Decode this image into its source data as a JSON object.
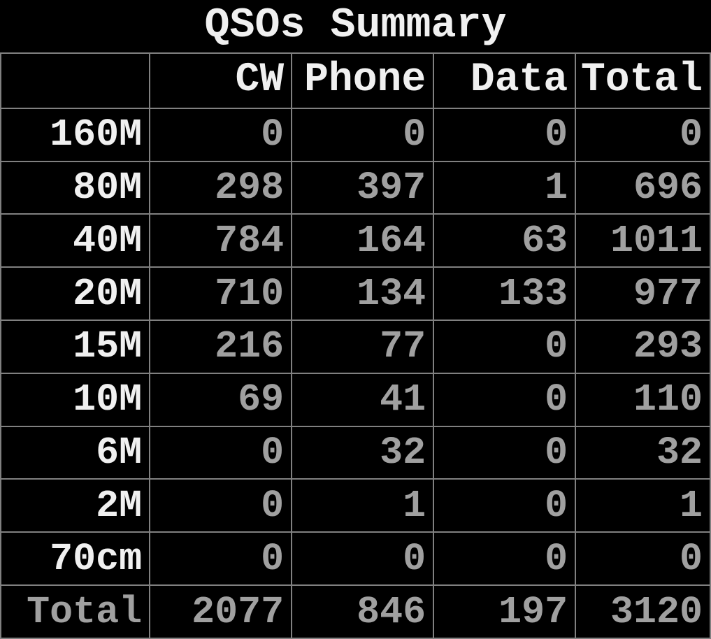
{
  "table": {
    "type": "table",
    "title": "QSOs Summary",
    "background_color": "#000000",
    "border_color": "#808080",
    "header_text_color": "#f0f0f0",
    "label_text_color": "#f0f0f0",
    "data_text_color": "#a0a0a0",
    "total_text_color": "#a0a0a0",
    "title_fontsize": 60,
    "header_fontsize": 58,
    "cell_fontsize": 55,
    "font_family": "monospace",
    "columns": [
      "",
      "CW",
      "Phone",
      "Data",
      "Total"
    ],
    "column_widths_pct": [
      21,
      20,
      20,
      20,
      19
    ],
    "column_align": [
      "right",
      "right",
      "right",
      "right",
      "right"
    ],
    "rows": [
      {
        "band": "160M",
        "cw": 0,
        "phone": 0,
        "data": 0,
        "total": 0
      },
      {
        "band": "80M",
        "cw": 298,
        "phone": 397,
        "data": 1,
        "total": 696
      },
      {
        "band": "40M",
        "cw": 784,
        "phone": 164,
        "data": 63,
        "total": 1011
      },
      {
        "band": "20M",
        "cw": 710,
        "phone": 134,
        "data": 133,
        "total": 977
      },
      {
        "band": "15M",
        "cw": 216,
        "phone": 77,
        "data": 0,
        "total": 293
      },
      {
        "band": "10M",
        "cw": 69,
        "phone": 41,
        "data": 0,
        "total": 110
      },
      {
        "band": "6M",
        "cw": 0,
        "phone": 32,
        "data": 0,
        "total": 32
      },
      {
        "band": "2M",
        "cw": 0,
        "phone": 1,
        "data": 0,
        "total": 1
      },
      {
        "band": "70cm",
        "cw": 0,
        "phone": 0,
        "data": 0,
        "total": 0
      }
    ],
    "totals": {
      "band": "Total",
      "cw": 2077,
      "phone": 846,
      "data": 197,
      "total": 3120
    }
  }
}
